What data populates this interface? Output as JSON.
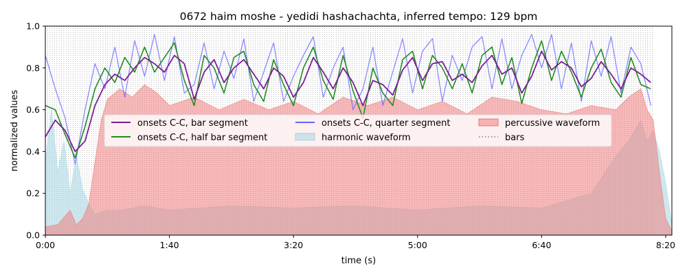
{
  "chart_data": {
    "type": "line",
    "title": "0672 haim moshe - yedidi hashachachta, inferred tempo: 129 bpm",
    "xlabel": "time (s)",
    "ylabel": "normalized values",
    "xlim": [
      0,
      505
    ],
    "ylim": [
      0,
      1.0
    ],
    "x_ticks": [
      {
        "value": 0,
        "label": "0:00"
      },
      {
        "value": 100,
        "label": "1:40"
      },
      {
        "value": 200,
        "label": "3:20"
      },
      {
        "value": 300,
        "label": "5:00"
      },
      {
        "value": 400,
        "label": "6:40"
      },
      {
        "value": 500,
        "label": "8:20"
      }
    ],
    "y_ticks": [
      {
        "value": 0.0,
        "label": "0.0"
      },
      {
        "value": 0.2,
        "label": "0.2"
      },
      {
        "value": 0.4,
        "label": "0.4"
      },
      {
        "value": 0.6,
        "label": "0.6"
      },
      {
        "value": 0.8,
        "label": "0.8"
      },
      {
        "value": 1.0,
        "label": "1.0"
      }
    ],
    "grid": false,
    "legend_position": "center",
    "bars": {
      "name": "bars",
      "start": 0,
      "end": 490,
      "period_s": 1.86,
      "color": "#808080",
      "style": "dotted"
    },
    "series": [
      {
        "name": "onsets C-C, bar segment",
        "kind": "line",
        "color": "#7b1e96",
        "x": [
          0,
          8,
          16,
          24,
          32,
          40,
          48,
          56,
          64,
          72,
          80,
          88,
          96,
          104,
          112,
          120,
          128,
          136,
          144,
          152,
          160,
          168,
          176,
          184,
          192,
          200,
          208,
          216,
          224,
          232,
          240,
          248,
          256,
          264,
          272,
          280,
          288,
          296,
          304,
          312,
          320,
          328,
          336,
          344,
          352,
          360,
          368,
          376,
          384,
          392,
          400,
          408,
          416,
          424,
          432,
          440,
          448,
          456,
          464,
          472,
          480,
          488
        ],
        "y": [
          0.47,
          0.55,
          0.5,
          0.4,
          0.45,
          0.62,
          0.72,
          0.77,
          0.74,
          0.8,
          0.85,
          0.82,
          0.78,
          0.86,
          0.82,
          0.65,
          0.78,
          0.84,
          0.73,
          0.8,
          0.84,
          0.77,
          0.7,
          0.8,
          0.76,
          0.66,
          0.73,
          0.85,
          0.78,
          0.7,
          0.8,
          0.73,
          0.62,
          0.74,
          0.72,
          0.67,
          0.79,
          0.85,
          0.74,
          0.82,
          0.83,
          0.74,
          0.77,
          0.73,
          0.81,
          0.86,
          0.77,
          0.8,
          0.68,
          0.76,
          0.88,
          0.79,
          0.83,
          0.8,
          0.71,
          0.75,
          0.83,
          0.77,
          0.7,
          0.8,
          0.77,
          0.73
        ]
      },
      {
        "name": "onsets C-C, half bar segment",
        "kind": "line",
        "color": "#228b22",
        "x": [
          0,
          8,
          16,
          24,
          32,
          40,
          48,
          56,
          64,
          72,
          80,
          88,
          96,
          104,
          112,
          120,
          128,
          136,
          144,
          152,
          160,
          168,
          176,
          184,
          192,
          200,
          208,
          216,
          224,
          232,
          240,
          248,
          256,
          264,
          272,
          280,
          288,
          296,
          304,
          312,
          320,
          328,
          336,
          344,
          352,
          360,
          368,
          376,
          384,
          392,
          400,
          408,
          416,
          424,
          432,
          440,
          448,
          456,
          464,
          472,
          480,
          488
        ],
        "y": [
          0.62,
          0.6,
          0.48,
          0.37,
          0.52,
          0.7,
          0.8,
          0.73,
          0.85,
          0.78,
          0.9,
          0.78,
          0.85,
          0.92,
          0.74,
          0.62,
          0.86,
          0.8,
          0.68,
          0.85,
          0.88,
          0.72,
          0.64,
          0.84,
          0.72,
          0.62,
          0.8,
          0.9,
          0.74,
          0.65,
          0.86,
          0.69,
          0.56,
          0.8,
          0.68,
          0.62,
          0.84,
          0.88,
          0.7,
          0.86,
          0.8,
          0.7,
          0.82,
          0.68,
          0.86,
          0.9,
          0.72,
          0.85,
          0.63,
          0.8,
          0.93,
          0.74,
          0.88,
          0.78,
          0.66,
          0.8,
          0.89,
          0.73,
          0.66,
          0.85,
          0.72,
          0.7
        ]
      },
      {
        "name": "onsets C-C, quarter segment",
        "kind": "line",
        "color": "#6464ff",
        "x": [
          0,
          8,
          16,
          24,
          32,
          40,
          48,
          56,
          64,
          72,
          80,
          88,
          96,
          104,
          112,
          120,
          128,
          136,
          144,
          152,
          160,
          168,
          176,
          184,
          192,
          200,
          208,
          216,
          224,
          232,
          240,
          248,
          256,
          264,
          272,
          280,
          288,
          296,
          304,
          312,
          320,
          328,
          336,
          344,
          352,
          360,
          368,
          376,
          384,
          392,
          400,
          408,
          416,
          424,
          432,
          440,
          448,
          456,
          464,
          472,
          480,
          488
        ],
        "y": [
          0.86,
          0.7,
          0.56,
          0.34,
          0.6,
          0.82,
          0.7,
          0.9,
          0.66,
          0.93,
          0.76,
          0.96,
          0.74,
          0.95,
          0.68,
          0.72,
          0.92,
          0.7,
          0.88,
          0.75,
          0.94,
          0.64,
          0.78,
          0.92,
          0.64,
          0.76,
          0.86,
          0.95,
          0.66,
          0.8,
          0.9,
          0.6,
          0.7,
          0.9,
          0.62,
          0.78,
          0.94,
          0.68,
          0.88,
          0.94,
          0.64,
          0.86,
          0.74,
          0.9,
          0.95,
          0.7,
          0.94,
          0.7,
          0.86,
          0.96,
          0.8,
          0.96,
          0.7,
          0.92,
          0.64,
          0.93,
          0.76,
          0.95,
          0.68,
          0.9,
          0.82,
          0.62
        ]
      },
      {
        "name": "harmonic waveform",
        "kind": "area",
        "color": "#add8e6",
        "x": [
          0,
          5,
          10,
          15,
          20,
          25,
          30,
          35,
          40,
          50,
          60,
          80,
          100,
          150,
          200,
          250,
          300,
          350,
          400,
          440,
          460,
          470,
          480,
          485,
          490,
          495,
          500,
          505
        ],
        "y": [
          0.35,
          0.6,
          0.3,
          0.45,
          0.2,
          0.38,
          0.22,
          0.15,
          0.1,
          0.12,
          0.12,
          0.14,
          0.12,
          0.14,
          0.13,
          0.14,
          0.12,
          0.14,
          0.13,
          0.2,
          0.38,
          0.45,
          0.55,
          0.45,
          0.5,
          0.4,
          0.25,
          0.05
        ]
      },
      {
        "name": "percussive waveform",
        "kind": "area",
        "color": "#f08080",
        "x": [
          0,
          10,
          20,
          25,
          30,
          35,
          40,
          45,
          50,
          60,
          70,
          80,
          90,
          100,
          120,
          140,
          160,
          180,
          200,
          220,
          240,
          260,
          280,
          300,
          320,
          340,
          360,
          380,
          400,
          420,
          440,
          460,
          470,
          480,
          485,
          490,
          495,
          500,
          505
        ],
        "y": [
          0.04,
          0.05,
          0.12,
          0.05,
          0.08,
          0.15,
          0.35,
          0.55,
          0.65,
          0.7,
          0.66,
          0.72,
          0.68,
          0.62,
          0.66,
          0.6,
          0.65,
          0.6,
          0.64,
          0.58,
          0.66,
          0.62,
          0.66,
          0.6,
          0.64,
          0.58,
          0.66,
          0.64,
          0.6,
          0.58,
          0.62,
          0.6,
          0.66,
          0.7,
          0.6,
          0.55,
          0.3,
          0.08,
          0.02
        ]
      }
    ]
  }
}
